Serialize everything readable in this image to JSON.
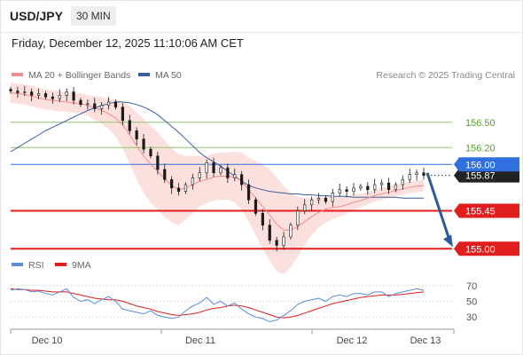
{
  "header": {
    "symbol": "USD/JPY",
    "timeframe": "30 MIN"
  },
  "datetime": "Friday, December 12, 2025 11:10:06 AM CET",
  "legend": {
    "ma20_label": "MA 20 + Bollinger Bands",
    "ma50_label": "MA 50",
    "credit": "Research © 2025 Trading Central"
  },
  "colors": {
    "ma20": "#f28c8c",
    "ma50": "#3a5f9e",
    "band": "#fbd6d2",
    "candle": "#1a1a1a",
    "support": "#e01e1e",
    "resistance": "#8cc46a",
    "pivot": "#2f6fde",
    "arrow": "#2c5a9e",
    "rsi": "#5b8dd9",
    "rsi_ma": "#e01e1e"
  },
  "chart_data": [
    {
      "type": "candlestick",
      "x_ticks": [
        "Dec 10",
        "Dec 11",
        "Dec 12",
        "Dec 13"
      ],
      "ylim": [
        154.95,
        156.95
      ],
      "series": [
        {
          "name": "MA 20 + Bollinger Bands",
          "values": [
            156.85,
            156.84,
            156.83,
            156.81,
            156.79,
            156.77,
            156.76,
            156.75,
            156.74,
            156.73,
            156.72,
            156.7,
            156.67,
            156.64,
            156.6,
            156.55,
            156.47,
            156.35,
            156.22,
            156.1,
            156.0,
            155.92,
            155.83,
            155.75,
            155.7,
            155.72,
            155.76,
            155.8,
            155.82,
            155.85,
            155.86,
            155.86,
            155.85,
            155.8,
            155.7,
            155.6,
            155.5,
            155.4,
            155.29,
            155.22,
            155.22,
            155.26,
            155.32,
            155.38,
            155.43,
            155.47,
            155.49,
            155.5,
            155.52,
            155.55,
            155.57,
            155.6,
            155.63,
            155.65,
            155.67,
            155.69,
            155.71,
            155.73,
            155.74,
            155.75
          ]
        },
        {
          "name": "MA 50",
          "values": [
            156.15,
            156.2,
            156.25,
            156.3,
            156.35,
            156.4,
            156.44,
            156.48,
            156.52,
            156.56,
            156.6,
            156.64,
            156.67,
            156.7,
            156.72,
            156.74,
            156.74,
            156.73,
            156.71,
            156.68,
            156.64,
            156.59,
            156.52,
            156.45,
            156.38,
            156.3,
            156.22,
            156.14,
            156.08,
            156.03,
            155.98,
            155.92,
            155.86,
            155.8,
            155.75,
            155.72,
            155.7,
            155.68,
            155.67,
            155.66,
            155.65,
            155.65,
            155.64,
            155.64,
            155.63,
            155.63,
            155.62,
            155.62,
            155.62,
            155.61,
            155.61,
            155.61,
            155.61,
            155.61,
            155.61,
            155.61,
            155.6,
            155.6,
            155.6,
            155.6
          ]
        }
      ],
      "close": [
        156.87,
        156.85,
        156.86,
        156.82,
        156.84,
        156.8,
        156.78,
        156.82,
        156.86,
        156.76,
        156.71,
        156.72,
        156.66,
        156.7,
        156.74,
        156.68,
        156.52,
        156.4,
        156.3,
        156.18,
        156.1,
        155.94,
        155.82,
        155.72,
        155.68,
        155.76,
        155.84,
        155.9,
        156.02,
        155.9,
        155.96,
        155.84,
        155.88,
        155.76,
        155.58,
        155.42,
        155.28,
        155.1,
        155.04,
        155.14,
        155.28,
        155.45,
        155.52,
        155.58,
        155.6,
        155.56,
        155.66,
        155.7,
        155.68,
        155.72,
        155.74,
        155.7,
        155.76,
        155.78,
        155.7,
        155.76,
        155.82,
        155.88,
        155.9,
        155.87
      ],
      "levels": [
        {
          "label": "156.50",
          "value": 156.5,
          "kind": "resistance"
        },
        {
          "label": "156.20",
          "value": 156.2,
          "kind": "resistance"
        },
        {
          "label": "156.00",
          "value": 156.0,
          "kind": "pivot"
        },
        {
          "label": "155.45",
          "value": 155.45,
          "kind": "support"
        },
        {
          "label": "155.00",
          "value": 155.0,
          "kind": "support"
        }
      ],
      "last_price": {
        "label": "155.87",
        "value": 155.87
      },
      "forecast_arrow": {
        "from": 155.9,
        "to": 155.02
      }
    },
    {
      "type": "line",
      "legend": [
        "RSI",
        "9MA"
      ],
      "y_ticks": [
        "70",
        "50",
        "30"
      ],
      "ylim": [
        20,
        80
      ],
      "series": [
        {
          "name": "RSI",
          "values": [
            64,
            66,
            65,
            62,
            63,
            60,
            58,
            62,
            66,
            55,
            50,
            52,
            47,
            52,
            56,
            50,
            40,
            38,
            36,
            34,
            38,
            32,
            30,
            28,
            30,
            38,
            44,
            48,
            55,
            46,
            50,
            44,
            48,
            40,
            34,
            30,
            28,
            24,
            26,
            32,
            38,
            46,
            50,
            52,
            54,
            50,
            56,
            58,
            56,
            60,
            60,
            58,
            62,
            62,
            56,
            60,
            62,
            64,
            66,
            64
          ]
        },
        {
          "name": "9MA",
          "values": [
            66,
            65,
            65,
            64,
            64,
            63,
            62,
            62,
            62,
            60,
            58,
            56,
            54,
            53,
            52,
            52,
            50,
            47,
            44,
            42,
            40,
            37,
            35,
            33,
            32,
            33,
            34,
            36,
            39,
            41,
            42,
            44,
            45,
            44,
            42,
            39,
            36,
            33,
            30,
            29,
            30,
            32,
            35,
            38,
            41,
            44,
            47,
            49,
            51,
            53,
            55,
            56,
            57,
            58,
            58,
            58,
            59,
            60,
            61,
            62
          ]
        }
      ]
    }
  ]
}
